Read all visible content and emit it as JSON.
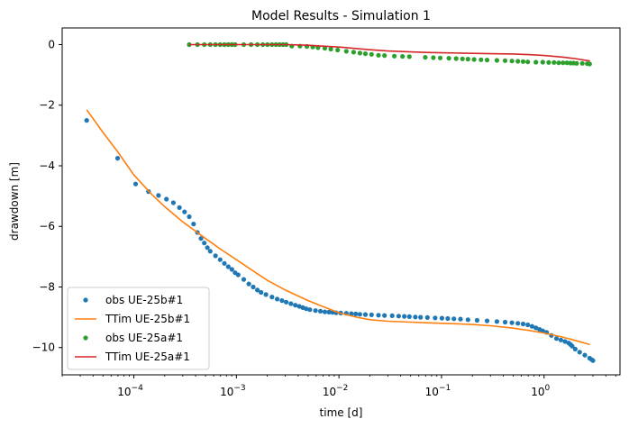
{
  "chart_data": {
    "type": "scatter",
    "title": "Model Results - Simulation 1",
    "xlabel": "time [d]",
    "ylabel": "drawdown [m]",
    "xscale": "log",
    "xlim": [
      2e-05,
      5.5
    ],
    "ylim": [
      -10.9,
      0.55
    ],
    "x_ticks": [
      0.0001,
      0.001,
      0.01,
      0.1,
      1
    ],
    "x_tick_labels": [
      {
        "base": "10",
        "exp": "−4"
      },
      {
        "base": "10",
        "exp": "−3"
      },
      {
        "base": "10",
        "exp": "−2"
      },
      {
        "base": "10",
        "exp": "−1"
      },
      {
        "base": "10",
        "exp": "0"
      }
    ],
    "y_ticks": [
      0,
      -2,
      -4,
      -6,
      -8,
      -10
    ],
    "y_tick_labels": [
      "0",
      "−2",
      "−4",
      "−6",
      "−8",
      "−10"
    ],
    "grid": false,
    "legend_position": "lower-left",
    "series": [
      {
        "name": "obs UE-25b#1",
        "kind": "points",
        "color": "#1f77b4",
        "x": [
          3.47e-05,
          6.94e-05,
          0.000104,
          0.000139,
          0.000174,
          0.000208,
          0.000243,
          0.000278,
          0.000312,
          0.000347,
          0.000382,
          0.000417,
          0.000451,
          0.000486,
          0.000521,
          0.000556,
          0.000625,
          0.000694,
          0.000764,
          0.000833,
          0.000903,
          0.000972,
          0.00104,
          0.00118,
          0.00132,
          0.00146,
          0.0016,
          0.00174,
          0.00194,
          0.00222,
          0.0025,
          0.00278,
          0.00306,
          0.0034,
          0.00375,
          0.0041,
          0.00444,
          0.00479,
          0.00521,
          0.0059,
          0.0066,
          0.00729,
          0.00799,
          0.00868,
          0.00938,
          0.0104,
          0.0118,
          0.0132,
          0.0146,
          0.016,
          0.0181,
          0.0208,
          0.0243,
          0.0278,
          0.033,
          0.0382,
          0.0434,
          0.0486,
          0.0556,
          0.0625,
          0.0729,
          0.0868,
          0.101,
          0.115,
          0.132,
          0.153,
          0.181,
          0.222,
          0.278,
          0.347,
          0.417,
          0.486,
          0.556,
          0.625,
          0.694,
          0.764,
          0.833,
          0.903,
          0.972,
          1.06,
          1.18,
          1.32,
          1.46,
          1.6,
          1.74,
          1.81,
          1.88,
          2.01,
          2.22,
          2.5,
          2.78,
          2.92,
          3.0
        ],
        "y": [
          -2.5,
          -3.75,
          -4.6,
          -4.85,
          -4.98,
          -5.1,
          -5.22,
          -5.38,
          -5.52,
          -5.68,
          -5.92,
          -6.2,
          -6.4,
          -6.55,
          -6.7,
          -6.82,
          -6.97,
          -7.1,
          -7.22,
          -7.33,
          -7.42,
          -7.53,
          -7.6,
          -7.75,
          -7.9,
          -8.0,
          -8.1,
          -8.18,
          -8.25,
          -8.33,
          -8.4,
          -8.45,
          -8.5,
          -8.55,
          -8.6,
          -8.64,
          -8.68,
          -8.72,
          -8.75,
          -8.78,
          -8.8,
          -8.82,
          -8.83,
          -8.84,
          -8.85,
          -8.86,
          -8.87,
          -8.88,
          -8.89,
          -8.9,
          -8.91,
          -8.92,
          -8.93,
          -8.94,
          -8.95,
          -8.96,
          -8.97,
          -8.98,
          -8.99,
          -9.0,
          -9.01,
          -9.02,
          -9.03,
          -9.04,
          -9.05,
          -9.06,
          -9.08,
          -9.1,
          -9.12,
          -9.14,
          -9.16,
          -9.18,
          -9.2,
          -9.22,
          -9.25,
          -9.3,
          -9.35,
          -9.4,
          -9.45,
          -9.5,
          -9.6,
          -9.7,
          -9.75,
          -9.8,
          -9.85,
          -9.9,
          -9.95,
          -10.05,
          -10.15,
          -10.25,
          -10.35,
          -10.4,
          -10.43
        ]
      },
      {
        "name": "TTim UE-25b#1",
        "kind": "line",
        "color": "#ff7f0e",
        "x": [
          3.47e-05,
          5e-05,
          7e-05,
          0.0001,
          0.00015,
          0.0002,
          0.0003,
          0.0005,
          0.0007,
          0.001,
          0.0015,
          0.002,
          0.003,
          0.005,
          0.007,
          0.01,
          0.015,
          0.02,
          0.03,
          0.05,
          0.07,
          0.1,
          0.15,
          0.2,
          0.3,
          0.5,
          0.7,
          1.0,
          1.5,
          2.0,
          2.8
        ],
        "y": [
          -2.15,
          -2.9,
          -3.55,
          -4.3,
          -4.95,
          -5.35,
          -5.85,
          -6.4,
          -6.75,
          -7.1,
          -7.5,
          -7.78,
          -8.1,
          -8.45,
          -8.65,
          -8.85,
          -9.0,
          -9.08,
          -9.13,
          -9.16,
          -9.18,
          -9.2,
          -9.22,
          -9.24,
          -9.28,
          -9.36,
          -9.43,
          -9.52,
          -9.65,
          -9.76,
          -9.9
        ]
      },
      {
        "name": "obs UE-25a#1",
        "kind": "points",
        "color": "#2ca02c",
        "x": [
          0.000347,
          0.000417,
          0.000486,
          0.000556,
          0.000625,
          0.000694,
          0.000764,
          0.000833,
          0.000903,
          0.000972,
          0.00118,
          0.00139,
          0.0016,
          0.00181,
          0.00201,
          0.00222,
          0.00243,
          0.00264,
          0.00285,
          0.00306,
          0.00347,
          0.00417,
          0.00486,
          0.00556,
          0.00625,
          0.00729,
          0.00833,
          0.00972,
          0.0118,
          0.0139,
          0.016,
          0.0181,
          0.0208,
          0.0243,
          0.0278,
          0.0347,
          0.0417,
          0.0486,
          0.0694,
          0.0833,
          0.0972,
          0.118,
          0.139,
          0.16,
          0.181,
          0.208,
          0.243,
          0.278,
          0.347,
          0.417,
          0.486,
          0.556,
          0.625,
          0.694,
          0.833,
          0.972,
          1.11,
          1.25,
          1.39,
          1.53,
          1.67,
          1.81,
          1.94,
          2.08,
          2.36,
          2.64,
          2.78
        ],
        "y": [
          0.0,
          0.0,
          0.0,
          0.0,
          0.0,
          0.0,
          0.0,
          0.0,
          0.0,
          0.0,
          0.0,
          0.0,
          0.0,
          0.0,
          0.0,
          0.0,
          0.0,
          0.0,
          0.0,
          0.0,
          -0.05,
          -0.05,
          -0.06,
          -0.08,
          -0.1,
          -0.12,
          -0.15,
          -0.18,
          -0.22,
          -0.25,
          -0.28,
          -0.3,
          -0.32,
          -0.35,
          -0.36,
          -0.38,
          -0.39,
          -0.4,
          -0.42,
          -0.43,
          -0.44,
          -0.45,
          -0.46,
          -0.47,
          -0.48,
          -0.49,
          -0.5,
          -0.51,
          -0.52,
          -0.53,
          -0.54,
          -0.55,
          -0.56,
          -0.57,
          -0.58,
          -0.58,
          -0.59,
          -0.59,
          -0.6,
          -0.6,
          -0.6,
          -0.61,
          -0.61,
          -0.62,
          -0.62,
          -0.63,
          -0.64
        ]
      },
      {
        "name": "TTim UE-25a#1",
        "kind": "line",
        "color": "#d62728",
        "x": [
          0.000347,
          0.0005,
          0.0007,
          0.001,
          0.0015,
          0.002,
          0.003,
          0.005,
          0.007,
          0.01,
          0.015,
          0.02,
          0.03,
          0.05,
          0.07,
          0.1,
          0.15,
          0.2,
          0.3,
          0.5,
          0.7,
          1.0,
          1.5,
          2.0,
          2.8
        ],
        "y": [
          0.0,
          0.0,
          0.0,
          0.0,
          0.0,
          0.0,
          0.0,
          -0.02,
          -0.05,
          -0.08,
          -0.13,
          -0.17,
          -0.21,
          -0.24,
          -0.26,
          -0.27,
          -0.28,
          -0.29,
          -0.3,
          -0.31,
          -0.33,
          -0.36,
          -0.41,
          -0.46,
          -0.54
        ]
      }
    ]
  }
}
